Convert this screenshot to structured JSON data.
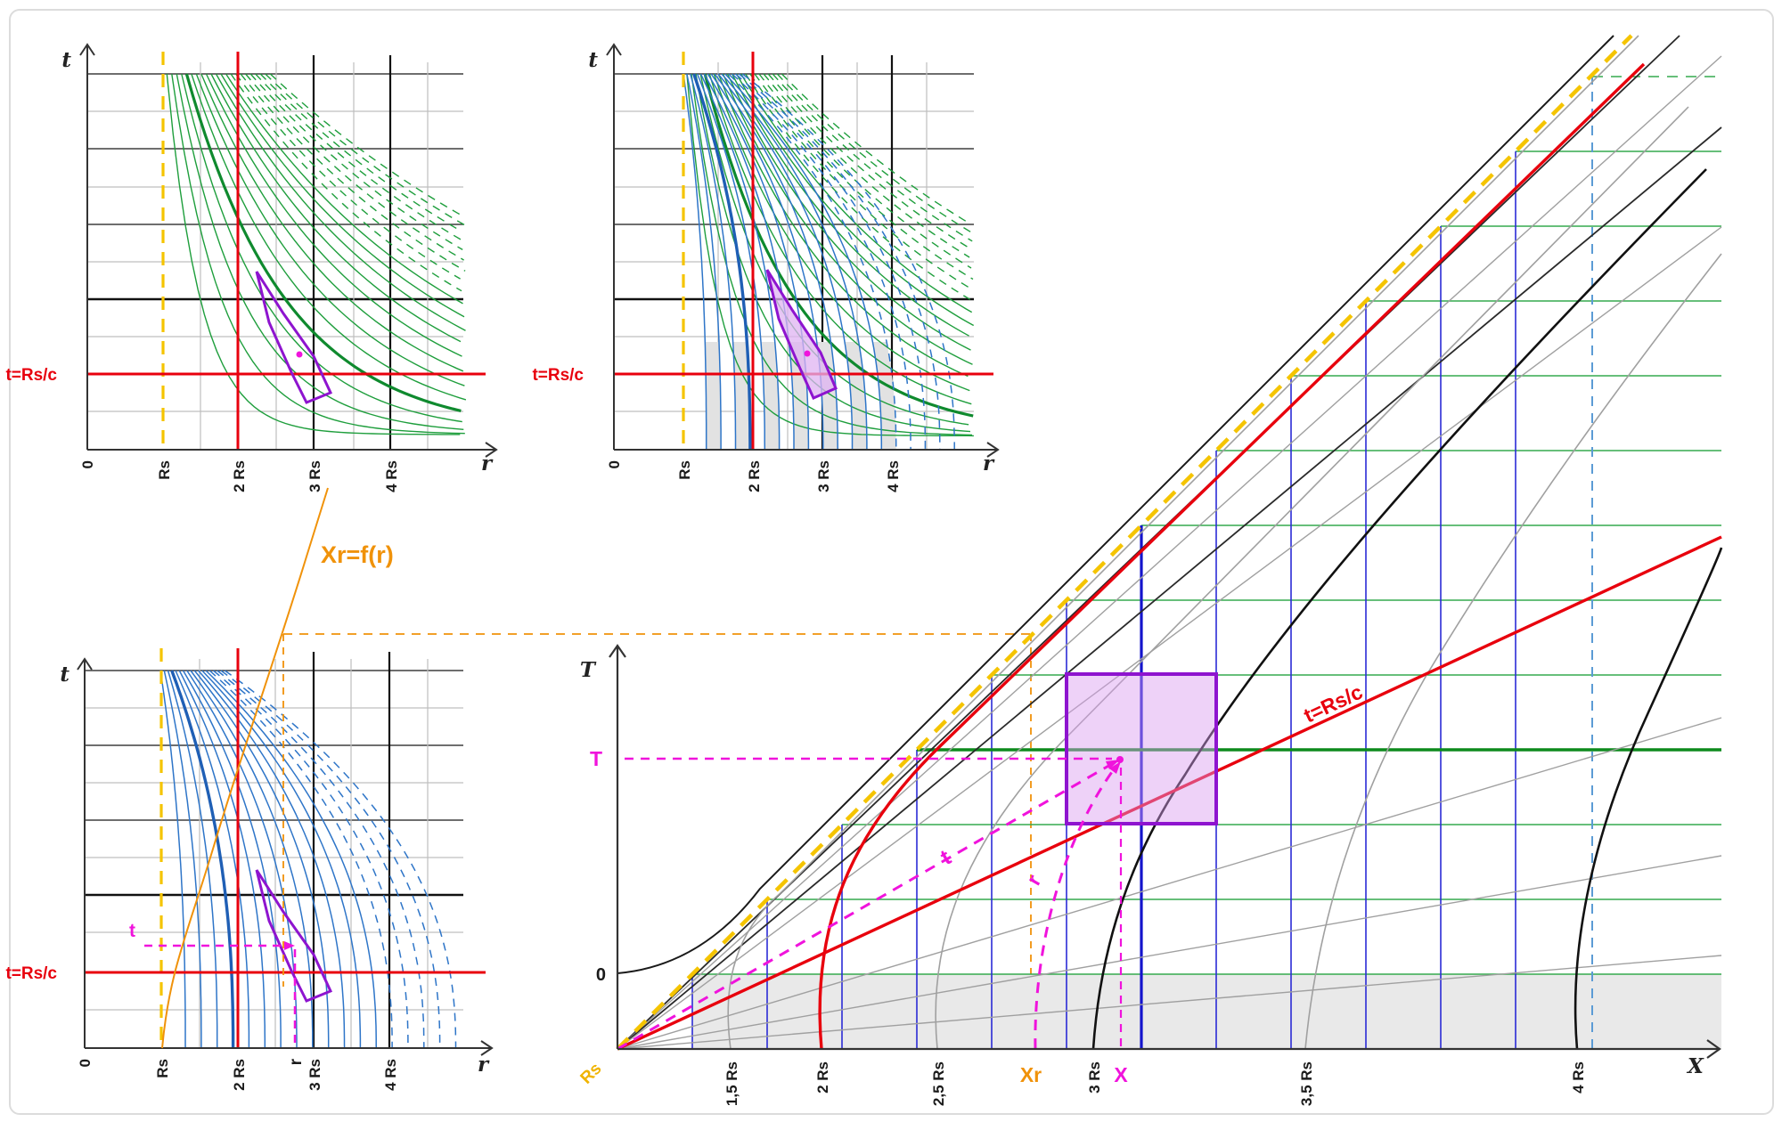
{
  "colors": {
    "yellow": "#F5C400",
    "red": "#E8000D",
    "green": "#1E9E3C",
    "dark_green": "#0D8A1D",
    "blue_curve": "#2E75C8",
    "grid_blue": "#2B2BD5",
    "magenta": "#F013DC",
    "purple": "#8E14CF",
    "orange": "#F0920A",
    "gray": "#9B9B9B"
  },
  "panel_top_left": {
    "t_axis": "t",
    "r_axis": "r",
    "t_line": "t=Rs/c",
    "tick_0": "0",
    "tick_rs": "Rs",
    "tick_2rs": "2 Rs",
    "tick_3rs": "3 Rs",
    "tick_4rs": "4 Rs"
  },
  "panel_top_right": {
    "t_axis": "t",
    "r_axis": "r",
    "t_line": "t=Rs/c",
    "tick_0": "0",
    "tick_rs": "Rs",
    "tick_2rs": "2 Rs",
    "tick_3rs": "3 Rs",
    "tick_4rs": "4 Rs"
  },
  "panel_bottom_left": {
    "t_axis": "t",
    "r_axis": "r",
    "t_line": "t=Rs/c",
    "tick_0": "0",
    "tick_rs": "Rs",
    "tick_2rs": "2 Rs",
    "tick_3rs": "3 Rs",
    "tick_4rs": "4 Rs",
    "t_mark": "t",
    "r_mark": "r"
  },
  "main_panel": {
    "T_axis": "T",
    "X_axis": "X",
    "origin": "Rs",
    "zero": "0",
    "t_line": "t=Rs/c",
    "label_15": "1,5 Rs",
    "label_2": "2 Rs",
    "label_25": "2,5 Rs",
    "label_3": "3 Rs",
    "label_35": "3,5 Rs",
    "label_4": "4 Rs",
    "mark_T": "T",
    "mark_X": "X",
    "mark_Xr": "Xr",
    "mark_t": "t",
    "mark_r": "r"
  },
  "connector": {
    "label": "Xr=f(r)"
  }
}
